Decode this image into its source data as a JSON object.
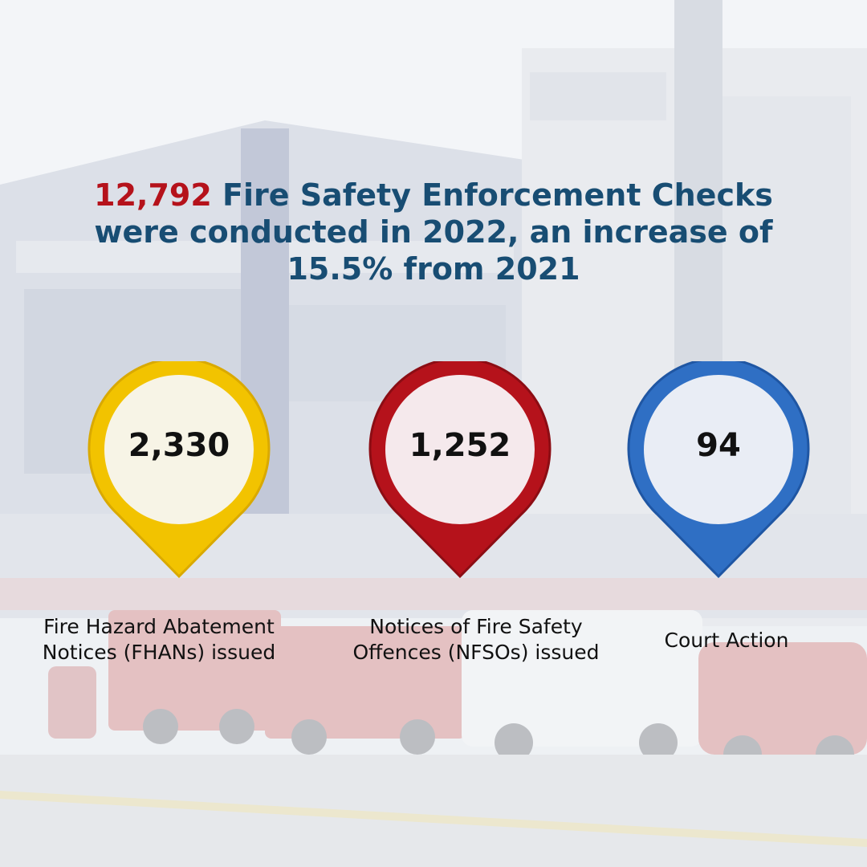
{
  "headline": {
    "highlight": "12,792",
    "text": "Fire Safety Enforcement Checks were conducted in 2022, an increase of 15.5% from 2021"
  },
  "stats": [
    {
      "value": "2,330",
      "label": "Fire Hazard Abatement Notices (FHANs) issued",
      "color": "#f2c300",
      "fill": "#f7f4e6"
    },
    {
      "value": "1,252",
      "label": "Notices of Fire Safety Offences (NFSOs) issued",
      "color": "#b5121b",
      "fill": "#f5e9ec"
    },
    {
      "value": "94",
      "label": "Court Action",
      "color": "#2f6fc4",
      "fill": "#e9edf5"
    }
  ],
  "colors": {
    "headline": "#184d73",
    "accent": "#b5121b"
  }
}
